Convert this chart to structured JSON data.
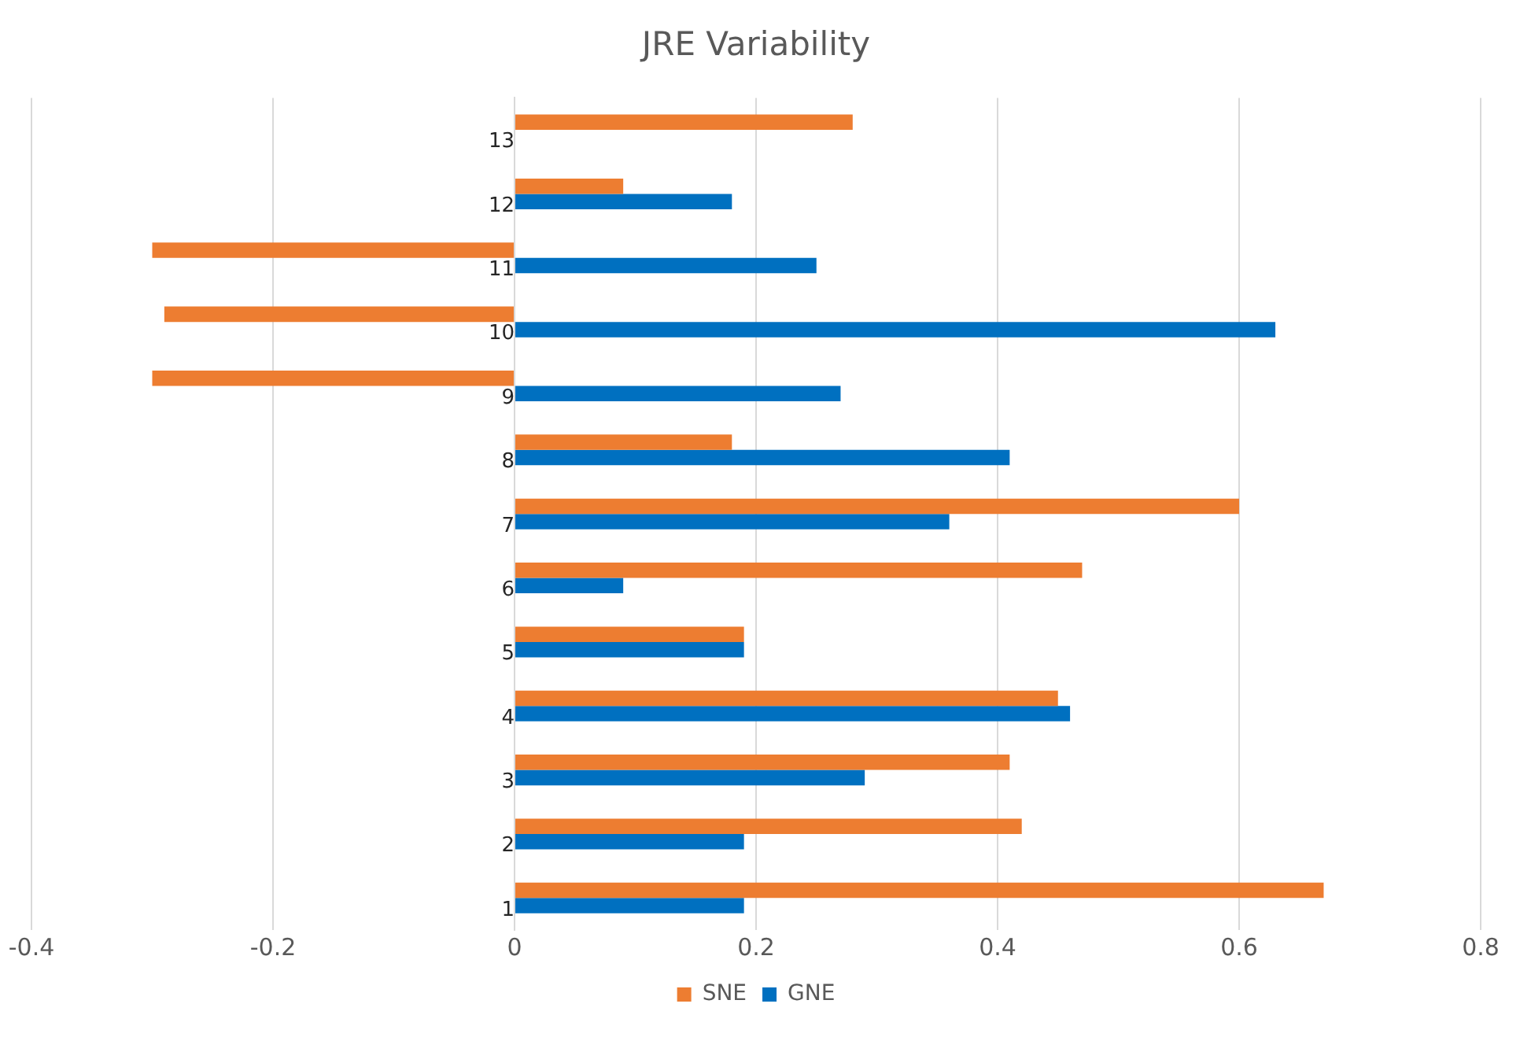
{
  "chart_data": {
    "type": "bar",
    "orientation": "horizontal",
    "title": "JRE Variability",
    "categories": [
      "13",
      "12",
      "11",
      "10",
      "9",
      "8",
      "7",
      "6",
      "5",
      "4",
      "3",
      "2",
      "1"
    ],
    "series": [
      {
        "name": "SNE",
        "color": "#ed7d31",
        "values": [
          0.28,
          0.09,
          -0.3,
          -0.29,
          -0.3,
          0.18,
          0.6,
          0.47,
          0.19,
          0.45,
          0.41,
          0.42,
          0.67
        ]
      },
      {
        "name": "GNE",
        "color": "#0070c0",
        "values": [
          null,
          0.18,
          0.25,
          0.63,
          0.27,
          0.41,
          0.36,
          0.09,
          0.19,
          0.46,
          0.29,
          0.19,
          0.19
        ]
      }
    ],
    "xlim": [
      -0.4,
      0.8
    ],
    "xticks": [
      {
        "value": -0.4,
        "label": "-0.4"
      },
      {
        "value": -0.2,
        "label": "-0.2"
      },
      0,
      {
        "value": 0.2,
        "label": "0.2"
      },
      {
        "value": 0.4,
        "label": "0.4"
      },
      {
        "value": 0.6,
        "label": "0.6"
      },
      {
        "value": 0.8,
        "label": "0.8"
      }
    ],
    "grid": "x",
    "legend": "bottom"
  }
}
